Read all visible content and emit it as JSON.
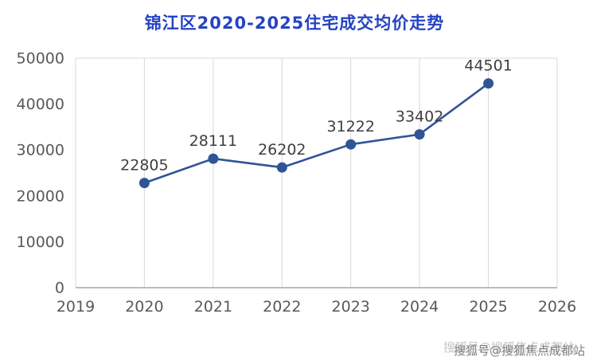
{
  "chart_data": {
    "type": "line",
    "title": "锦江区2020-2025住宅成交均价走势",
    "x": [
      2020,
      2021,
      2022,
      2023,
      2024,
      2025
    ],
    "values": [
      22805,
      28111,
      26202,
      31222,
      33402,
      44501
    ],
    "xlabel": "",
    "ylabel": "",
    "xlim": [
      2019,
      2026
    ],
    "ylim": [
      0,
      50000
    ],
    "x_ticks": [
      2019,
      2020,
      2021,
      2022,
      2023,
      2024,
      2025,
      2026
    ],
    "y_ticks": [
      0,
      10000,
      20000,
      30000,
      40000,
      50000
    ],
    "grid": "vertical",
    "legend": "none",
    "line_color": "#2f5597",
    "marker_color": "#2f5597",
    "title_color": "#2543c4",
    "grid_color": "#d9d9d9",
    "axis_line_color": "#a6a6a6",
    "tick_label_color": "#595959",
    "data_label_color": "#3f3f3f"
  },
  "watermark": {
    "text": "搜狐号@搜狐焦点成都站"
  }
}
